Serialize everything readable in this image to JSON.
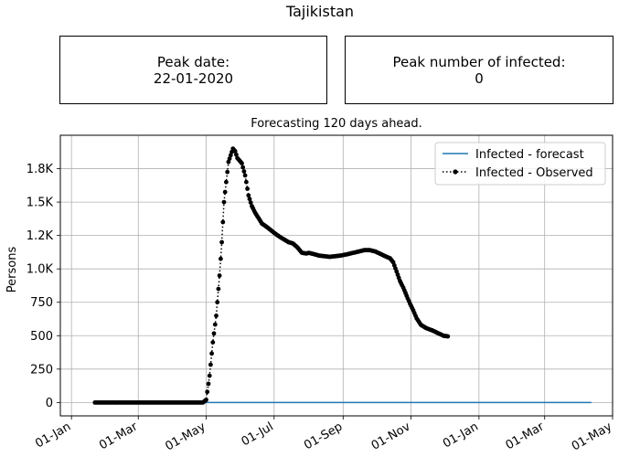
{
  "title": "Tajikistan",
  "peak_date": {
    "label": "Peak date:",
    "value": "22-01-2020"
  },
  "peak_infected": {
    "label": "Peak number of infected:",
    "value": "0"
  },
  "chart_data": {
    "type": "line",
    "title": "Forecasting 120 days ahead.",
    "xlabel": "",
    "ylabel": "Persons",
    "xlim": [
      "2019-12-22",
      "2021-05-01"
    ],
    "ylim": [
      -100,
      2000
    ],
    "grid": true,
    "legend": "top-right",
    "x_ticks": [
      "01-Jan",
      "01-Mar",
      "01-May",
      "01-Jul",
      "01-Sep",
      "01-Nov",
      "01-Jan",
      "01-Mar",
      "01-May"
    ],
    "x_tick_dates": [
      "2020-01-01",
      "2020-03-01",
      "2020-05-01",
      "2020-07-01",
      "2020-09-01",
      "2020-11-01",
      "2021-01-01",
      "2021-03-01",
      "2021-05-01"
    ],
    "y_ticks": [
      0,
      250,
      500,
      750,
      1000,
      1250,
      1500,
      1750
    ],
    "y_tick_labels": [
      "0",
      "250",
      "500",
      "750",
      "1.0K",
      "1.2K",
      "1.5K",
      "1.8K"
    ],
    "series": [
      {
        "name": "Infected - forecast",
        "color": "#1f77b4",
        "style": "solid",
        "x": [
          "2020-01-22",
          "2021-04-12"
        ],
        "y": [
          0,
          0
        ]
      },
      {
        "name": "Infected - Observed",
        "color": "#000000",
        "style": "dotted-markers",
        "x": [
          "2020-01-22",
          "2020-04-28",
          "2020-05-01",
          "2020-05-04",
          "2020-05-07",
          "2020-05-10",
          "2020-05-13",
          "2020-05-15",
          "2020-05-17",
          "2020-05-19",
          "2020-05-21",
          "2020-05-23",
          "2020-05-25",
          "2020-05-27",
          "2020-05-29",
          "2020-05-31",
          "2020-06-02",
          "2020-06-05",
          "2020-06-08",
          "2020-06-11",
          "2020-06-14",
          "2020-06-17",
          "2020-06-20",
          "2020-06-25",
          "2020-07-01",
          "2020-07-06",
          "2020-07-10",
          "2020-07-14",
          "2020-07-18",
          "2020-07-22",
          "2020-07-26",
          "2020-07-30",
          "2020-08-01",
          "2020-08-06",
          "2020-08-10",
          "2020-08-15",
          "2020-08-20",
          "2020-08-25",
          "2020-08-30",
          "2020-09-05",
          "2020-09-10",
          "2020-09-15",
          "2020-09-20",
          "2020-09-25",
          "2020-09-30",
          "2020-10-05",
          "2020-10-10",
          "2020-10-13",
          "2020-10-16",
          "2020-10-19",
          "2020-10-22",
          "2020-10-25",
          "2020-10-28",
          "2020-10-31",
          "2020-11-03",
          "2020-11-06",
          "2020-11-10",
          "2020-11-15",
          "2020-11-20",
          "2020-11-25",
          "2020-11-30",
          "2020-12-04"
        ],
        "y": [
          0,
          0,
          20,
          200,
          450,
          650,
          950,
          1200,
          1500,
          1650,
          1800,
          1850,
          1900,
          1880,
          1830,
          1810,
          1790,
          1700,
          1550,
          1470,
          1420,
          1380,
          1340,
          1310,
          1270,
          1240,
          1220,
          1200,
          1190,
          1160,
          1120,
          1115,
          1120,
          1110,
          1100,
          1095,
          1090,
          1095,
          1100,
          1110,
          1120,
          1130,
          1140,
          1140,
          1130,
          1110,
          1090,
          1080,
          1050,
          980,
          910,
          860,
          800,
          740,
          690,
          630,
          580,
          555,
          540,
          520,
          500,
          495
        ]
      }
    ]
  }
}
